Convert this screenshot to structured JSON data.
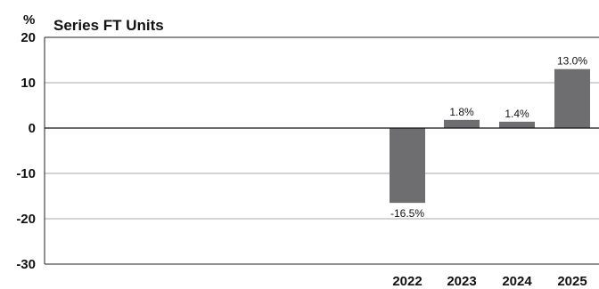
{
  "chart_data": {
    "type": "bar",
    "title": "Series FT Units",
    "y_unit": "%",
    "categories": [
      "2022",
      "2023",
      "2024",
      "2025"
    ],
    "values": [
      -16.5,
      1.8,
      1.4,
      13.0
    ],
    "value_labels": [
      "-16.5%",
      "1.8%",
      "1.4%",
      "13.0%"
    ],
    "ylim": [
      -30,
      20
    ],
    "yticks": [
      20,
      10,
      0,
      -10,
      -20,
      -30
    ],
    "ytick_labels": [
      "20",
      "10",
      "0",
      "-10",
      "-20",
      "-30"
    ],
    "grid": true,
    "bar_color": "#6e6e70"
  }
}
